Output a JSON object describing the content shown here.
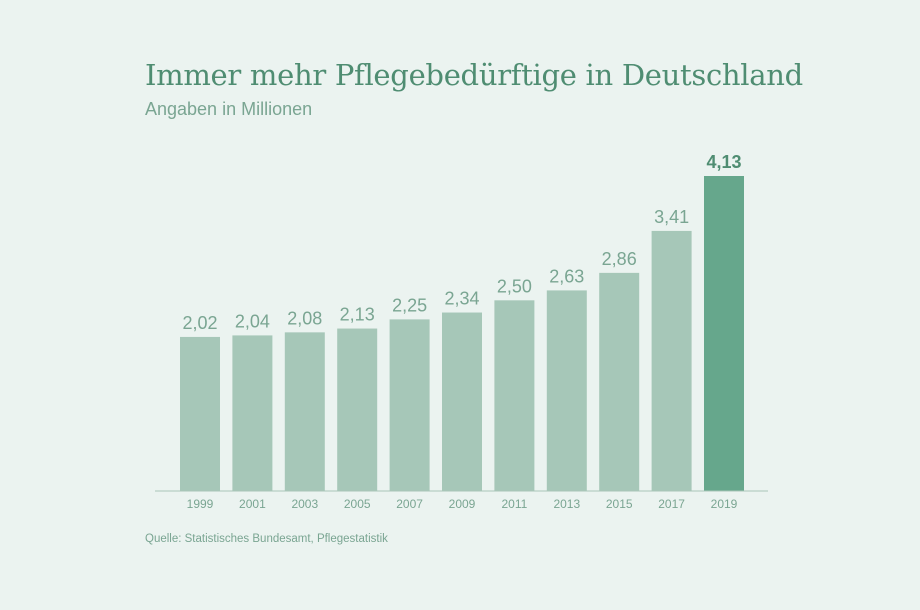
{
  "chart_data": {
    "type": "bar",
    "title": "Immer mehr Pflegebedürftige in Deutschland",
    "subtitle": "Angaben in Millionen",
    "source": "Quelle: Statistisches Bundesamt, Pflegestatistik",
    "categories": [
      "1999",
      "2001",
      "2003",
      "2005",
      "2007",
      "2009",
      "2011",
      "2013",
      "2015",
      "2017",
      "2019"
    ],
    "values": [
      2.02,
      2.04,
      2.08,
      2.13,
      2.25,
      2.34,
      2.5,
      2.63,
      2.86,
      3.41,
      4.13
    ],
    "value_labels": [
      "2,02",
      "2,04",
      "2,08",
      "2,13",
      "2,25",
      "2,34",
      "2,50",
      "2,63",
      "2,86",
      "3,41",
      "4,13"
    ],
    "highlight_index": 10,
    "ylim": [
      0,
      4.13
    ],
    "grid": false,
    "colors": {
      "bar": "#a6c7b8",
      "highlight": "#66a78c",
      "text": "#7aa592",
      "title": "#4f8d72",
      "axis": "#a9c4b8",
      "background": "#ebf3f0"
    }
  }
}
